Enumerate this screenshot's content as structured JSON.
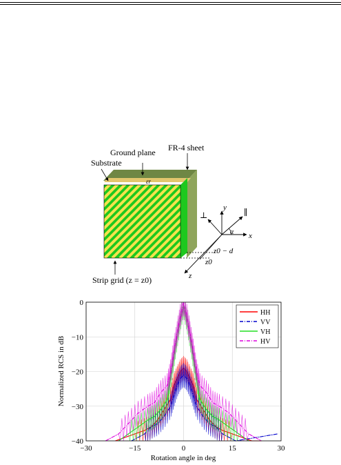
{
  "figure1": {
    "labels": {
      "ground_plane": "Ground plane",
      "fr4_sheet": "FR-4 sheet",
      "substrate": "Substrate",
      "epsilon": "εr",
      "perp": "⊥",
      "parallel": "∥",
      "axis_y": "y",
      "axis_x": "x",
      "axis_z": "z",
      "alpha": "α",
      "z0_minus_d": "z0 − d",
      "z0": "z0",
      "strip_grid": "Strip grid (z = z0)"
    },
    "colors": {
      "strip_green": "#1ec81e",
      "strip_yellow": "#f4e34c",
      "fr4": "#8fa55c",
      "fr4_dark": "#6f8744",
      "ground": "#e3c76e"
    }
  },
  "chart_data": {
    "type": "line",
    "xlabel": "Rotation angle in deg",
    "ylabel": "Normalized RCS in dB",
    "xlim": [
      -30,
      30
    ],
    "ylim": [
      -40,
      0
    ],
    "xticks": [
      "−30",
      "−15",
      "0",
      "15",
      "30"
    ],
    "yticks": [
      "0",
      "−10",
      "−20",
      "−30",
      "−40"
    ],
    "grid": true,
    "legend_position": "top-right",
    "series": [
      {
        "name": "HH",
        "color": "#ff0000",
        "dash": "solid",
        "x": [
          -21,
          -18,
          -15,
          -12,
          -10,
          -8,
          -6,
          -4,
          -3,
          -2,
          -1,
          0,
          1,
          2,
          3,
          4,
          6,
          8,
          10,
          12,
          15,
          18,
          21,
          24
        ],
        "y": [
          -40,
          -39,
          -38,
          -37,
          -36,
          -34,
          -31,
          -28,
          -24,
          -22,
          -20,
          -19,
          -20,
          -22,
          -24,
          -28,
          -31,
          -34,
          -36,
          -37,
          -38,
          -39,
          -40,
          -40
        ]
      },
      {
        "name": "VV",
        "color": "#0000cc",
        "dash": "dashdot",
        "x": [
          -16,
          -14,
          -12,
          -10,
          -8,
          -6,
          -4,
          -3,
          -2,
          -1,
          0,
          1,
          2,
          3,
          4,
          6,
          8,
          10,
          12,
          14,
          16,
          29
        ],
        "y": [
          -40,
          -39,
          -38,
          -36,
          -35,
          -33,
          -30,
          -27,
          -24,
          -22,
          -21,
          -22,
          -24,
          -27,
          -30,
          -33,
          -35,
          -36,
          -38,
          -39,
          -40,
          -38
        ]
      },
      {
        "name": "VH",
        "color": "#22dd22",
        "dash": "solid",
        "x": [
          -20,
          -17,
          -14,
          -11,
          -9,
          -7,
          -5,
          -4,
          -3,
          -2,
          -1,
          0,
          1,
          2,
          3,
          4,
          5,
          7,
          9,
          11,
          14,
          17,
          20
        ],
        "y": [
          -40,
          -38,
          -36,
          -34,
          -33,
          -31,
          -28,
          -22,
          -16,
          -10,
          -5,
          -1,
          -5,
          -10,
          -16,
          -22,
          -28,
          -31,
          -33,
          -34,
          -36,
          -38,
          -40
        ]
      },
      {
        "name": "HV",
        "color": "#dd00dd",
        "dash": "dashdot",
        "x": [
          -24,
          -20,
          -17,
          -14,
          -11,
          -9,
          -7,
          -5,
          -4,
          -3,
          -2,
          -1,
          0,
          1,
          2,
          3,
          4,
          5,
          7,
          9,
          11,
          14,
          17,
          20,
          24
        ],
        "y": [
          -40,
          -38,
          -35,
          -32,
          -30,
          -29,
          -26,
          -24,
          -20,
          -14,
          -9,
          -4,
          0,
          -4,
          -9,
          -14,
          -20,
          -24,
          -26,
          -29,
          -30,
          -32,
          -35,
          -38,
          -40
        ]
      }
    ]
  }
}
